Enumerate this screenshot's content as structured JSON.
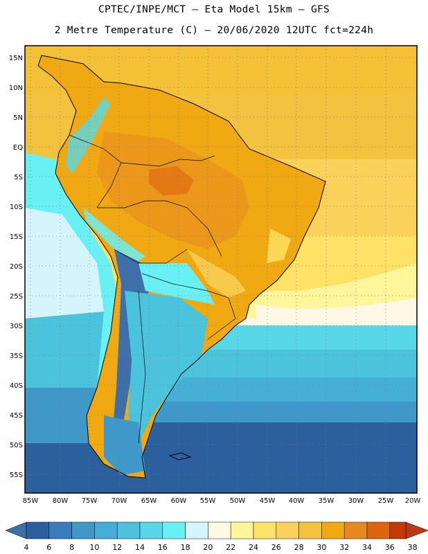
{
  "header": {
    "line1": "CPTEC/INPE/MCT –  Eta Model 15km – GFS",
    "line2": "2 Metre Temperature (C) – 20/06/2020 12UTC fct=224h"
  },
  "map": {
    "lat_labels": [
      "15N",
      "10N",
      "5N",
      "EQ",
      "5S",
      "10S",
      "15S",
      "20S",
      "25S",
      "30S",
      "35S",
      "40S",
      "45S",
      "50S",
      "55S"
    ],
    "lon_labels": [
      "85W",
      "80W",
      "75W",
      "70W",
      "65W",
      "60W",
      "55W",
      "50W",
      "45W",
      "40W",
      "35W",
      "30W",
      "25W",
      "20W"
    ]
  },
  "colorbar": {
    "labels": [
      "4",
      "6",
      "8",
      "10",
      "12",
      "14",
      "16",
      "18",
      "20",
      "22",
      "24",
      "26",
      "28",
      "30",
      "32",
      "34",
      "36",
      "38"
    ],
    "colors": [
      "#2c5f9e",
      "#3a7bbd",
      "#3f98c8",
      "#45aed5",
      "#4cc3dd",
      "#57d7e8",
      "#69f0f5",
      "#d6f5fb",
      "#fff8e6",
      "#fff59a",
      "#fde266",
      "#fad25a",
      "#f3c23f",
      "#f0a912",
      "#e8891f",
      "#e06410",
      "#c23a04"
    ],
    "low_color": "#3f6fa8",
    "high_color": "#b83a12"
  }
}
